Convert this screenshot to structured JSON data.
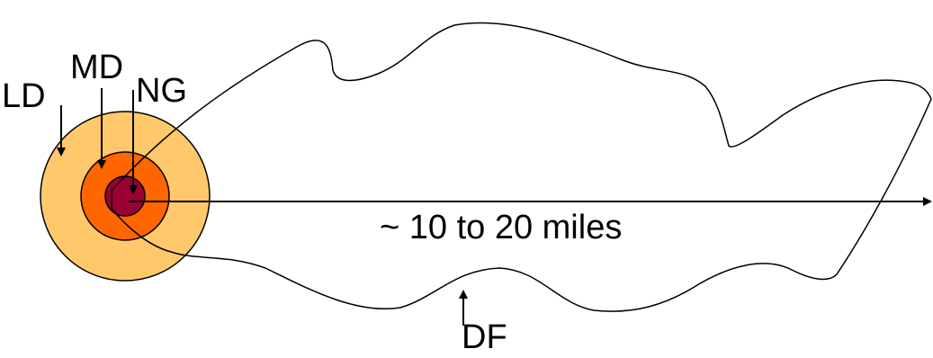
{
  "labels": {
    "ld": "LD",
    "md": "MD",
    "ng": "NG",
    "range": "~ 10 to 20 miles",
    "df": "DF"
  },
  "zones": {
    "ld": {
      "color": "#ffc96b"
    },
    "md": {
      "color": "#ff6600"
    },
    "ng": {
      "color": "#990033"
    }
  },
  "colors": {
    "stroke": "#000000",
    "background": "#ffffff"
  }
}
